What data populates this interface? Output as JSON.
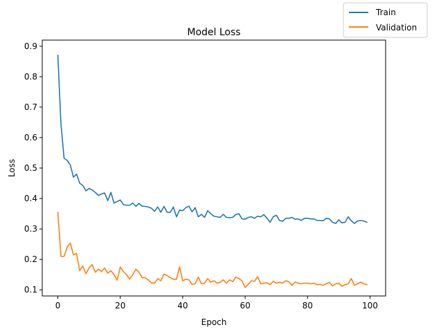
{
  "chart_data": {
    "type": "line",
    "title": "Model Loss",
    "xlabel": "Epoch",
    "ylabel": "Loss",
    "xlim": [
      -5,
      105
    ],
    "ylim": [
      0.08,
      0.92
    ],
    "xticks": [
      0,
      20,
      40,
      60,
      80,
      100
    ],
    "yticks": [
      0.1,
      0.2,
      0.3,
      0.4,
      0.5,
      0.6,
      0.7,
      0.8,
      0.9
    ],
    "grid": false,
    "legend_placement": "top-right",
    "series": [
      {
        "name": "Train",
        "color": "#1f77b4",
        "x": [
          0,
          1,
          2,
          3,
          4,
          5,
          6,
          7,
          8,
          9,
          10,
          11,
          12,
          13,
          14,
          15,
          16,
          17,
          18,
          19,
          20,
          21,
          22,
          23,
          24,
          25,
          26,
          27,
          28,
          29,
          30,
          31,
          32,
          33,
          34,
          35,
          36,
          37,
          38,
          39,
          40,
          41,
          42,
          43,
          44,
          45,
          46,
          47,
          48,
          49,
          50,
          51,
          52,
          53,
          54,
          55,
          56,
          57,
          58,
          59,
          60,
          61,
          62,
          63,
          64,
          65,
          66,
          67,
          68,
          69,
          70,
          71,
          72,
          73,
          74,
          75,
          76,
          77,
          78,
          79,
          80,
          81,
          82,
          83,
          84,
          85,
          86,
          87,
          88,
          89,
          90,
          91,
          92,
          93,
          94,
          95,
          96,
          97,
          98,
          99
        ],
        "values": [
          0.87,
          0.645,
          0.532,
          0.525,
          0.51,
          0.47,
          0.48,
          0.45,
          0.443,
          0.425,
          0.433,
          0.428,
          0.42,
          0.41,
          0.415,
          0.418,
          0.393,
          0.42,
          0.385,
          0.39,
          0.395,
          0.38,
          0.378,
          0.378,
          0.385,
          0.374,
          0.384,
          0.375,
          0.374,
          0.372,
          0.368,
          0.358,
          0.372,
          0.355,
          0.374,
          0.355,
          0.354,
          0.372,
          0.34,
          0.362,
          0.36,
          0.37,
          0.375,
          0.356,
          0.37,
          0.34,
          0.348,
          0.338,
          0.36,
          0.35,
          0.342,
          0.34,
          0.338,
          0.348,
          0.338,
          0.337,
          0.338,
          0.347,
          0.35,
          0.333,
          0.332,
          0.338,
          0.34,
          0.335,
          0.342,
          0.34,
          0.347,
          0.335,
          0.322,
          0.34,
          0.345,
          0.328,
          0.325,
          0.335,
          0.335,
          0.338,
          0.332,
          0.333,
          0.328,
          0.335,
          0.335,
          0.333,
          0.333,
          0.328,
          0.328,
          0.327,
          0.335,
          0.333,
          0.322,
          0.318,
          0.33,
          0.32,
          0.322,
          0.34,
          0.327,
          0.318,
          0.326,
          0.328,
          0.326,
          0.322
        ]
      },
      {
        "name": "Validation",
        "color": "#ff7f0e",
        "x": [
          0,
          1,
          2,
          3,
          4,
          5,
          6,
          7,
          8,
          9,
          10,
          11,
          12,
          13,
          14,
          15,
          16,
          17,
          18,
          19,
          20,
          21,
          22,
          23,
          24,
          25,
          26,
          27,
          28,
          29,
          30,
          31,
          32,
          33,
          34,
          35,
          36,
          37,
          38,
          39,
          40,
          41,
          42,
          43,
          44,
          45,
          46,
          47,
          48,
          49,
          50,
          51,
          52,
          53,
          54,
          55,
          56,
          57,
          58,
          59,
          60,
          61,
          62,
          63,
          64,
          65,
          66,
          67,
          68,
          69,
          70,
          71,
          72,
          73,
          74,
          75,
          76,
          77,
          78,
          79,
          80,
          81,
          82,
          83,
          84,
          85,
          86,
          87,
          88,
          89,
          90,
          91,
          92,
          93,
          94,
          95,
          96,
          97,
          98,
          99
        ],
        "values": [
          0.355,
          0.21,
          0.21,
          0.24,
          0.254,
          0.215,
          0.22,
          0.163,
          0.178,
          0.153,
          0.172,
          0.183,
          0.158,
          0.168,
          0.16,
          0.172,
          0.155,
          0.163,
          0.15,
          0.132,
          0.175,
          0.16,
          0.15,
          0.135,
          0.15,
          0.168,
          0.158,
          0.14,
          0.14,
          0.132,
          0.123,
          0.122,
          0.137,
          0.13,
          0.152,
          0.147,
          0.14,
          0.135,
          0.135,
          0.175,
          0.13,
          0.135,
          0.133,
          0.118,
          0.12,
          0.142,
          0.12,
          0.122,
          0.137,
          0.125,
          0.13,
          0.122,
          0.125,
          0.133,
          0.122,
          0.133,
          0.127,
          0.142,
          0.137,
          0.13,
          0.108,
          0.118,
          0.13,
          0.128,
          0.143,
          0.12,
          0.122,
          0.123,
          0.117,
          0.128,
          0.122,
          0.125,
          0.122,
          0.13,
          0.127,
          0.115,
          0.126,
          0.122,
          0.12,
          0.122,
          0.122,
          0.12,
          0.122,
          0.117,
          0.118,
          0.115,
          0.12,
          0.125,
          0.113,
          0.12,
          0.122,
          0.112,
          0.117,
          0.12,
          0.137,
          0.115,
          0.12,
          0.125,
          0.12,
          0.117
        ]
      }
    ]
  }
}
